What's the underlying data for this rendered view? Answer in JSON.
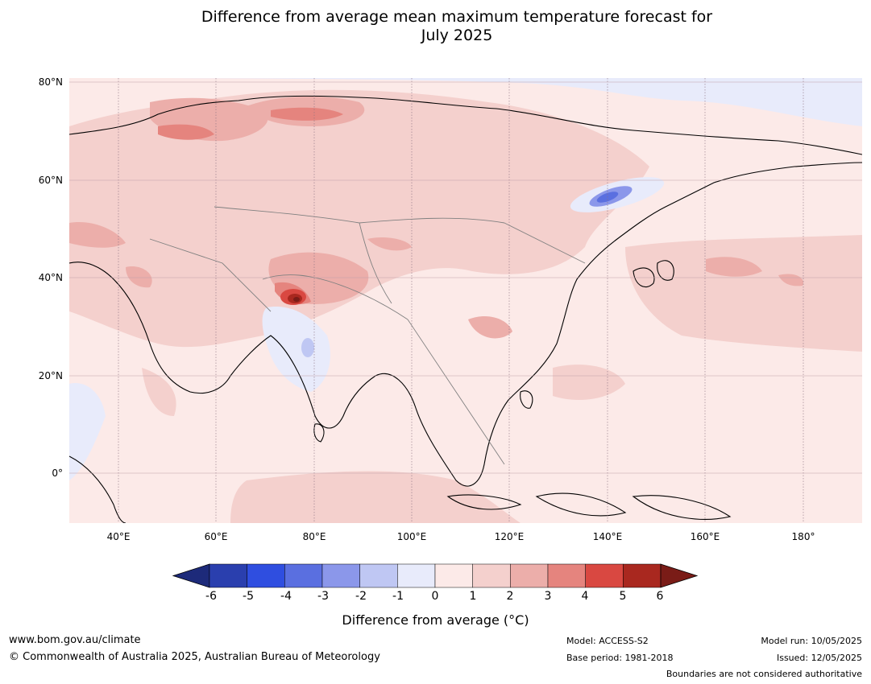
{
  "title_line1": "Difference from average mean maximum temperature forecast for",
  "title_line2": "July 2025",
  "map": {
    "lat_labels": [
      "80°N",
      "60°N",
      "40°N",
      "20°N",
      "0°"
    ],
    "lon_labels": [
      "40°E",
      "60°E",
      "80°E",
      "100°E",
      "120°E",
      "140°E",
      "160°E",
      "180°"
    ],
    "lat_range": [
      -10,
      80
    ],
    "lon_range": [
      30,
      192
    ]
  },
  "colorbar": {
    "ticks": [
      "-6",
      "-5",
      "-4",
      "-3",
      "-2",
      "-1",
      "0",
      "1",
      "2",
      "3",
      "4",
      "5",
      "6"
    ],
    "colors": [
      "#1d2a7a",
      "#2a3fae",
      "#2f4ee0",
      "#5a6fe0",
      "#8b97ea",
      "#bfc7f3",
      "#e8ebfb",
      "#fceae8",
      "#f4d0cd",
      "#ecaeaa",
      "#e5847e",
      "#d94841",
      "#a9281f",
      "#7a1c17"
    ],
    "label": "Difference from average (°C)"
  },
  "footer": {
    "website": "www.bom.gov.au/climate",
    "copyright": "© Commonwealth of Australia 2025, Australian Bureau of Meteorology",
    "model": "Model: ACCESS-S2",
    "base_period": "Base period: 1981-2018",
    "model_run": "Model run: 10/05/2025",
    "issued": "Issued: 12/05/2025",
    "disclaimer": "Boundaries are not considered authoritative"
  }
}
